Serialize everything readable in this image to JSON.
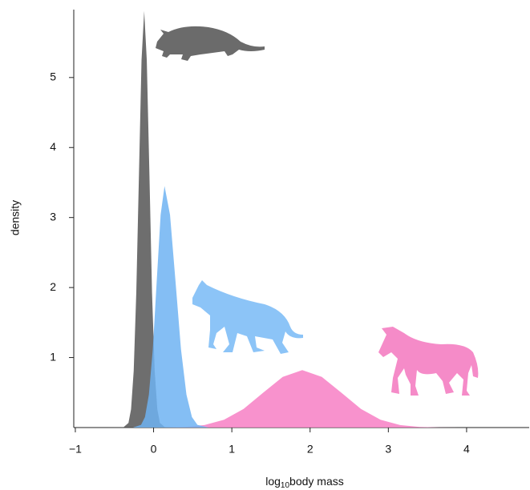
{
  "chart_data": {
    "type": "density",
    "xlabel": {
      "main": "log",
      "sub": "10",
      "rest": "body mass"
    },
    "ylabel": "density",
    "xlim": [
      -1.02,
      4.8
    ],
    "ylim": [
      0,
      5.97
    ],
    "xticks": [
      {
        "value": -1,
        "label": "−1"
      },
      0,
      1,
      2,
      3,
      4
    ],
    "yticks": [
      1,
      2,
      3,
      4,
      5
    ],
    "series": [
      {
        "color": "#f77fc4",
        "x": [
          -0.1,
          0.15,
          0.4,
          0.65,
          0.9,
          1.15,
          1.4,
          1.65,
          1.9,
          2.15,
          2.4,
          2.65,
          2.9,
          3.15,
          3.4,
          3.65,
          3.9
        ],
        "values": [
          0.0003,
          0.0018,
          0.0091,
          0.036,
          0.111,
          0.266,
          0.497,
          0.724,
          0.82,
          0.724,
          0.497,
          0.266,
          0.111,
          0.036,
          0.0091,
          0.0018,
          0.0003
        ]
      },
      {
        "color": "#555555",
        "x": [
          -0.6,
          -0.388,
          -0.321,
          -0.288,
          -0.254,
          -0.221,
          -0.187,
          -0.154,
          -0.12,
          -0.087,
          -0.053,
          -0.02,
          0.014,
          0.048,
          0.081,
          0.148,
          0.3
        ],
        "values": [
          0,
          0.002,
          0.066,
          0.26,
          0.81,
          1.93,
          3.61,
          5.25,
          5.95,
          5.25,
          3.61,
          1.93,
          0.81,
          0.26,
          0.066,
          0.002,
          0
        ]
      },
      {
        "color": "#6fb3f2",
        "x": [
          -0.26,
          -0.16,
          -0.11,
          -0.06,
          -0.01,
          0.04,
          0.09,
          0.14,
          0.21,
          0.28,
          0.35,
          0.42,
          0.49,
          0.56,
          0.7
        ],
        "values": [
          0.001,
          0.038,
          0.15,
          0.47,
          1.12,
          2.09,
          3.04,
          3.45,
          3.04,
          2.09,
          1.12,
          0.47,
          0.15,
          0.038,
          0.001
        ]
      }
    ]
  }
}
